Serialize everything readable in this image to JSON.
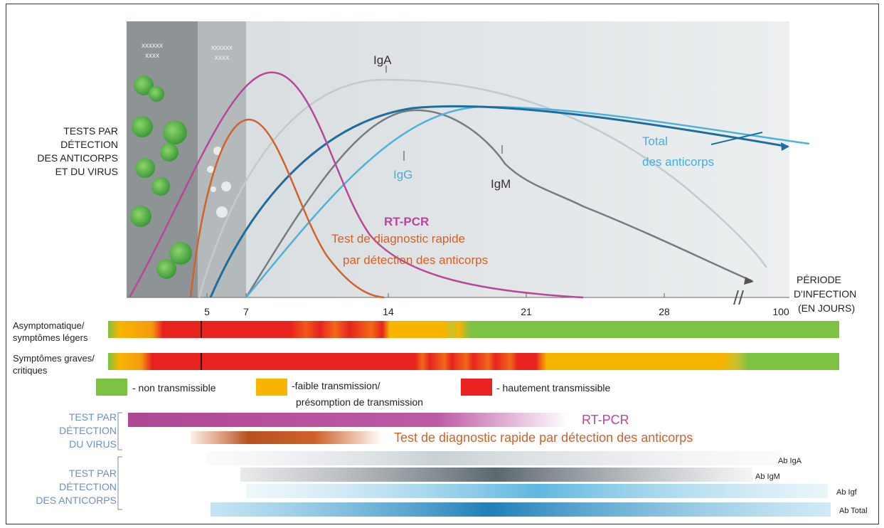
{
  "box_labels": {
    "box1": [
      "xxxxxx",
      "xxxx"
    ],
    "box2": [
      "xxxxxx",
      "xxxx"
    ]
  },
  "y_axis_label": [
    "TESTS PAR",
    "DÉTECTION",
    "DES ANTICORPS",
    "ET DU VIRUS"
  ],
  "x_axis_label": [
    "PÉRIODE",
    "D'INFECTION",
    "(EN JOURS)"
  ],
  "x_ticks": [
    "5",
    "7",
    "14",
    "21",
    "28",
    "100"
  ],
  "curve_labels": {
    "iga": "IgA",
    "igg": "IgG",
    "igm": "IgM",
    "total": [
      "Total",
      "des anticorps"
    ],
    "rtpcr": "RT-PCR",
    "rdt": [
      "Test de diagnostic rapide",
      "par détection des anticorps"
    ]
  },
  "transmission_rows": [
    [
      "Asymptomatique/",
      "symptômes légers"
    ],
    [
      "Symptômes graves/",
      "critiques"
    ]
  ],
  "legend": [
    {
      "label": [
        "- non transmissible"
      ],
      "color": "#7dc242"
    },
    {
      "label": [
        "-faible transmission/",
        "présomption de transmission"
      ],
      "color": "#f7b500"
    },
    {
      "label": [
        "- hautement transmissible"
      ],
      "color": "#e8231f"
    }
  ],
  "test_groups": {
    "virus": [
      "TEST PAR",
      "DÉTECTION",
      "DU VIRUS"
    ],
    "antibody": [
      "TEST PAR",
      "DÉTECTION",
      "DES ANTICORPS"
    ]
  },
  "bar_labels": {
    "rtpcr": "RT-PCR",
    "rdt": "Test de diagnostic rapide par détection des anticorps",
    "iga": "Ab IgA",
    "igm": "Ab IgM",
    "igf": "Ab Igf",
    "total": "Ab Total"
  },
  "colors": {
    "rtpcr": "#b5489a",
    "rdt": "#d0622a",
    "total": "#1f6fa0",
    "igg": "#47aed8",
    "igm": "#6b6b6b",
    "iga": "#c0c8cc",
    "groupLabel": "#6c8fc4"
  }
}
